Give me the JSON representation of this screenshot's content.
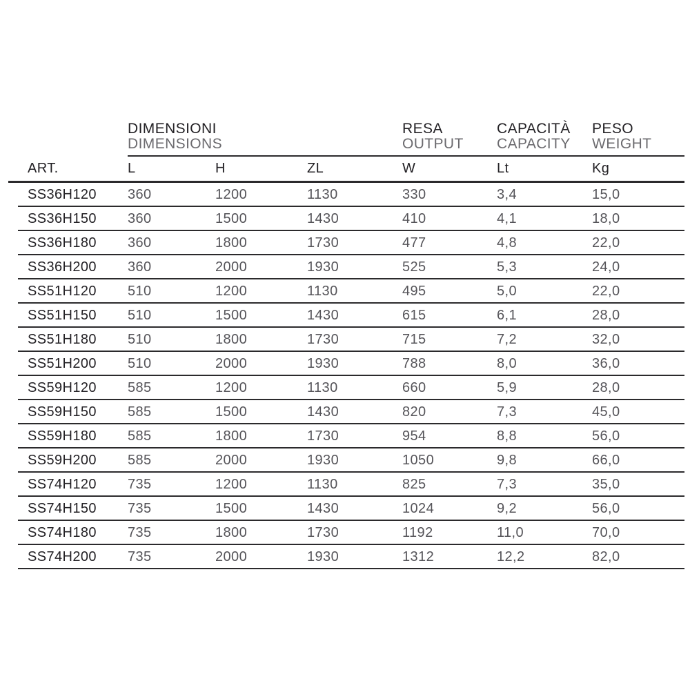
{
  "table": {
    "column_groups": [
      {
        "title": "DIMENSIONI",
        "subtitle": "DIMENSIONS"
      },
      {
        "title": "RESA",
        "subtitle": "OUTPUT"
      },
      {
        "title": "CAPACITÀ",
        "subtitle": "CAPACITY"
      },
      {
        "title": "PESO",
        "subtitle": "WEIGHT"
      }
    ],
    "columns": [
      "ART.",
      "L",
      "H",
      "ZL",
      "W",
      "Lt",
      "Kg"
    ],
    "rows": [
      {
        "art": "SS36H120",
        "l": "360",
        "h": "1200",
        "zl": "1130",
        "w": "330",
        "lt": "3,4",
        "kg": "15,0"
      },
      {
        "art": "SS36H150",
        "l": "360",
        "h": "1500",
        "zl": "1430",
        "w": "410",
        "lt": "4,1",
        "kg": "18,0"
      },
      {
        "art": "SS36H180",
        "l": "360",
        "h": "1800",
        "zl": "1730",
        "w": "477",
        "lt": "4,8",
        "kg": "22,0"
      },
      {
        "art": "SS36H200",
        "l": "360",
        "h": "2000",
        "zl": "1930",
        "w": "525",
        "lt": "5,3",
        "kg": "24,0"
      },
      {
        "art": "SS51H120",
        "l": "510",
        "h": "1200",
        "zl": "1130",
        "w": "495",
        "lt": "5,0",
        "kg": "22,0"
      },
      {
        "art": "SS51H150",
        "l": "510",
        "h": "1500",
        "zl": "1430",
        "w": "615",
        "lt": "6,1",
        "kg": "28,0"
      },
      {
        "art": "SS51H180",
        "l": "510",
        "h": "1800",
        "zl": "1730",
        "w": "715",
        "lt": "7,2",
        "kg": "32,0"
      },
      {
        "art": "SS51H200",
        "l": "510",
        "h": "2000",
        "zl": "1930",
        "w": "788",
        "lt": "8,0",
        "kg": "36,0"
      },
      {
        "art": "SS59H120",
        "l": "585",
        "h": "1200",
        "zl": "1130",
        "w": "660",
        "lt": "5,9",
        "kg": "28,0"
      },
      {
        "art": "SS59H150",
        "l": "585",
        "h": "1500",
        "zl": "1430",
        "w": "820",
        "lt": "7,3",
        "kg": "45,0"
      },
      {
        "art": "SS59H180",
        "l": "585",
        "h": "1800",
        "zl": "1730",
        "w": "954",
        "lt": "8,8",
        "kg": "56,0"
      },
      {
        "art": "SS59H200",
        "l": "585",
        "h": "2000",
        "zl": "1930",
        "w": "1050",
        "lt": "9,8",
        "kg": "66,0"
      },
      {
        "art": "SS74H120",
        "l": "735",
        "h": "1200",
        "zl": "1130",
        "w": "825",
        "lt": "7,3",
        "kg": "35,0"
      },
      {
        "art": "SS74H150",
        "l": "735",
        "h": "1500",
        "zl": "1430",
        "w": "1024",
        "lt": "9,2",
        "kg": "56,0"
      },
      {
        "art": "SS74H180",
        "l": "735",
        "h": "1800",
        "zl": "1730",
        "w": "1192",
        "lt": "11,0",
        "kg": "70,0"
      },
      {
        "art": "SS74H200",
        "l": "735",
        "h": "2000",
        "zl": "1930",
        "w": "1312",
        "lt": "12,2",
        "kg": "82,0"
      }
    ]
  },
  "colors": {
    "dark_text": "#232125",
    "gray_text": "#555459",
    "subtitle_gray": "#6b6a6e",
    "rule_line": "#2b2a2c",
    "background": "#ffffff"
  }
}
